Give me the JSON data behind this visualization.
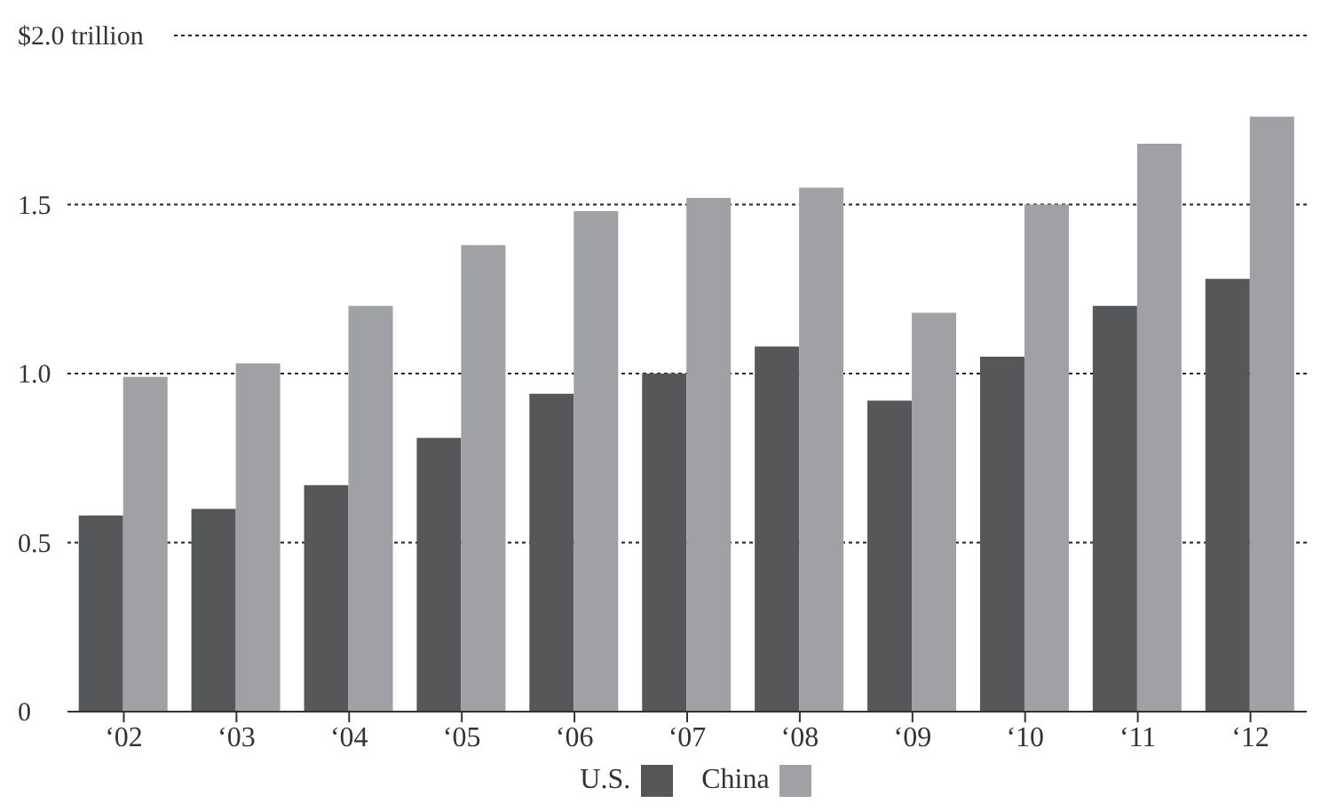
{
  "chart_data": {
    "type": "bar",
    "categories": [
      "‘02",
      "‘03",
      "‘04",
      "‘05",
      "‘06",
      "‘07",
      "‘08",
      "‘09",
      "‘10",
      "‘11",
      "‘12"
    ],
    "series": [
      {
        "name": "U.S.",
        "color": "#555759",
        "values": [
          0.58,
          0.6,
          0.67,
          0.81,
          0.94,
          1.0,
          1.08,
          0.92,
          1.05,
          1.2,
          1.28
        ]
      },
      {
        "name": "China",
        "color": "#a0a1a4",
        "values": [
          0.99,
          1.03,
          1.2,
          1.38,
          1.48,
          1.52,
          1.55,
          1.18,
          1.5,
          1.68,
          1.76
        ]
      }
    ],
    "ylim": [
      0,
      2
    ],
    "yticks": [
      0,
      {
        "value": 0.5,
        "label": "0.5"
      },
      {
        "value": 1,
        "label": "1.0"
      },
      {
        "value": 1.5,
        "label": "1.5"
      },
      {
        "value": 2,
        "label": "$2.0 trillion"
      }
    ],
    "grid": "y",
    "legend": "bottom"
  }
}
